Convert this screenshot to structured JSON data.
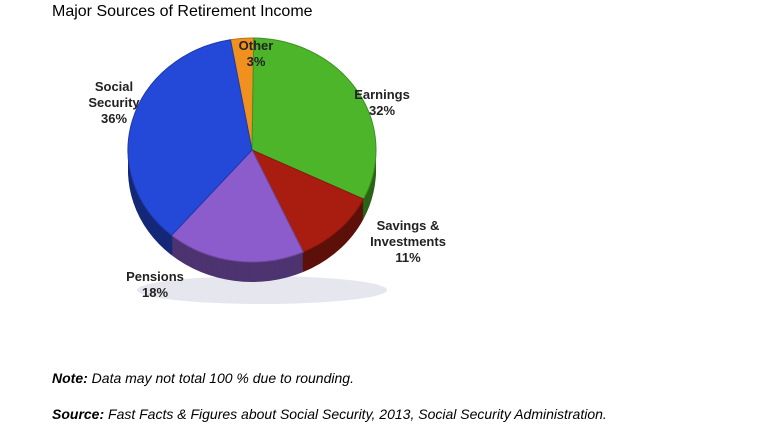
{
  "chart_data": {
    "type": "pie",
    "title": "Major Sources of Retirement Income",
    "categories": [
      "Other",
      "Earnings",
      "Savings & Investments",
      "Pensions",
      "Social Security"
    ],
    "values": [
      3,
      32,
      11,
      18,
      36
    ],
    "value_labels": [
      "3%",
      "32%",
      "11%",
      "18%",
      "36%"
    ],
    "colors": [
      "#f0901e",
      "#4cb52a",
      "#a81d10",
      "#8c5ccc",
      "#2448d8"
    ],
    "note_label": "Note:",
    "note": "Data may not total 100 % due to rounding.",
    "source_label": "Source:",
    "source": "Fast Facts & Figures about Social Security, 2013, Social Security Administration."
  }
}
